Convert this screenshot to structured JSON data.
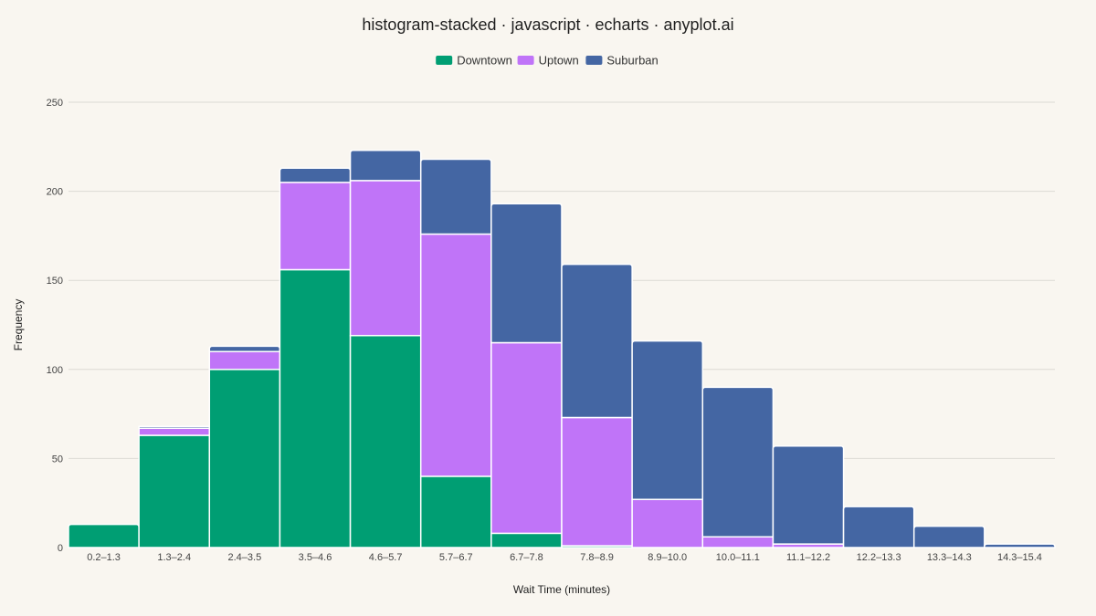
{
  "chart_data": {
    "type": "bar",
    "stacked": true,
    "title": "histogram-stacked · javascript · echarts · anyplot.ai",
    "xlabel": "Wait Time (minutes)",
    "ylabel": "Frequency",
    "ylim": [
      0,
      250
    ],
    "yticks": [
      0,
      50,
      100,
      150,
      200,
      250
    ],
    "grid": true,
    "legend_position": "top-center",
    "categories": [
      "0.2–1.3",
      "1.3–2.4",
      "2.4–3.5",
      "3.5–4.6",
      "4.6–5.7",
      "5.7–6.7",
      "6.7–7.8",
      "7.8–8.9",
      "8.9–10.0",
      "10.0–11.1",
      "11.1–12.2",
      "12.2–13.3",
      "13.3–14.3",
      "14.3–15.4"
    ],
    "series": [
      {
        "name": "Downtown",
        "color": "#009e73",
        "values": [
          13,
          63,
          100,
          156,
          119,
          40,
          8,
          1,
          0,
          0,
          0,
          0,
          0,
          0
        ]
      },
      {
        "name": "Uptown",
        "color": "#c074f8",
        "values": [
          0,
          4,
          10,
          49,
          87,
          136,
          107,
          72,
          27,
          6,
          2,
          0,
          0,
          0
        ]
      },
      {
        "name": "Suburban",
        "color": "#4466a3",
        "values": [
          0,
          1,
          3,
          8,
          17,
          42,
          78,
          86,
          89,
          84,
          55,
          23,
          12,
          2
        ]
      }
    ]
  }
}
